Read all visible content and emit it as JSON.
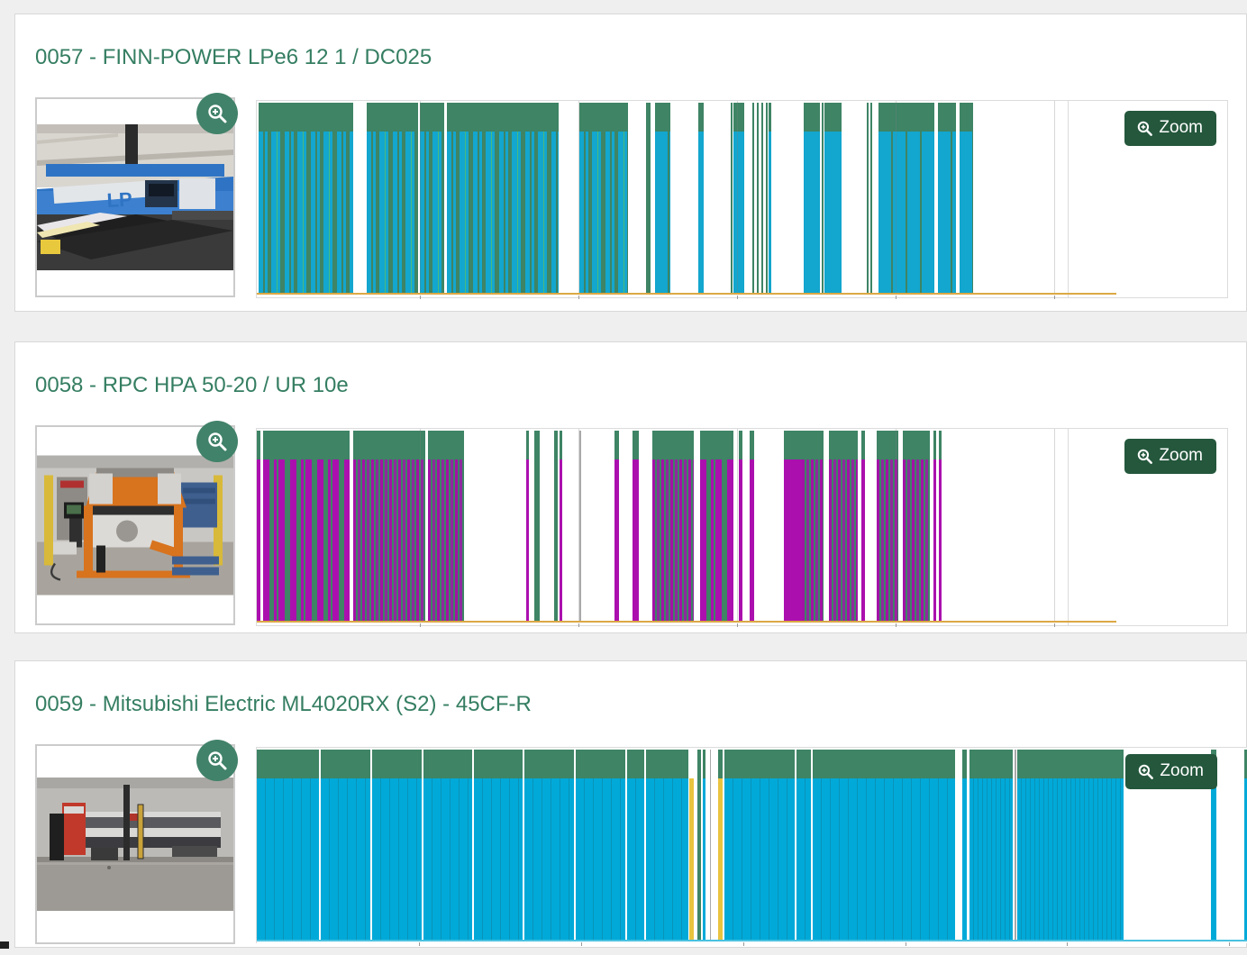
{
  "ui": {
    "zoom_button_label": "Zoom"
  },
  "palette": {
    "title_green": "#357E62",
    "band_green": "#3E8465",
    "cyan": "#13A6CE",
    "solid_cyan": "#00A9D8",
    "magenta": "#AB10AE",
    "yellow": "#E9C43F",
    "axis_orange": "#DCA845",
    "axis_cyan": "#4AC1E0",
    "button_green": "#24573C",
    "lens_green": "#41826A"
  },
  "panels": [
    {
      "title": "0057 - FINN-POWER LPe6 12 1 / DC025",
      "photo_desc": "blue FINN-POWER punching machine in workshop hall",
      "timeline": {
        "type": "timeline-barcode",
        "axis_width": 954,
        "axis_color": "#DCA845",
        "ticks": [
          181,
          357,
          533,
          709,
          885
        ],
        "gridlines": [
          181,
          357,
          533,
          709,
          885
        ],
        "segments": [
          [
            2,
            105,
            "act"
          ],
          [
            122,
            57,
            "act"
          ],
          [
            181,
            27,
            "act"
          ],
          [
            211,
            124,
            "act"
          ],
          [
            358,
            54,
            "act"
          ],
          [
            432,
            5,
            "grn"
          ],
          [
            442,
            17,
            "act3"
          ],
          [
            490,
            6,
            "sol"
          ],
          [
            526,
            2,
            "grn"
          ],
          [
            529,
            12,
            "sol"
          ],
          [
            550,
            2,
            "grn"
          ],
          [
            555,
            2,
            "grn"
          ],
          [
            560,
            2,
            "grn"
          ],
          [
            565,
            2,
            "grn"
          ],
          [
            568,
            3,
            "sol"
          ],
          [
            607,
            18,
            "sol"
          ],
          [
            627,
            2,
            "grn"
          ],
          [
            630,
            19,
            "sol"
          ],
          [
            677,
            2,
            "grn"
          ],
          [
            681,
            2,
            "grn"
          ],
          [
            690,
            62,
            "act3"
          ],
          [
            756,
            20,
            "act3"
          ],
          [
            780,
            15,
            "act3"
          ]
        ]
      }
    },
    {
      "title": "0058 - RPC HPA 50-20 / UR 10e",
      "photo_desc": "orange RPC press machine with robot and blue pallet",
      "timeline": {
        "type": "timeline-barcode",
        "axis_width": 954,
        "axis_color": "#DCA845",
        "ticks": [
          181,
          357,
          533,
          709,
          885
        ],
        "gridlines": [
          181,
          357,
          533,
          709,
          885
        ],
        "segments": [
          [
            0,
            4,
            "act"
          ],
          [
            7,
            96,
            "act"
          ],
          [
            107,
            80,
            "act2"
          ],
          [
            190,
            40,
            "act2"
          ],
          [
            299,
            3,
            "act"
          ],
          [
            308,
            6,
            "grn"
          ],
          [
            330,
            4,
            "grn"
          ],
          [
            336,
            3,
            "act"
          ],
          [
            358,
            2,
            "ln"
          ],
          [
            397,
            5,
            "act"
          ],
          [
            417,
            7,
            "act"
          ],
          [
            439,
            46,
            "act2"
          ],
          [
            492,
            37,
            "act"
          ],
          [
            535,
            4,
            "act"
          ],
          [
            547,
            5,
            "act"
          ],
          [
            585,
            20,
            "solm"
          ],
          [
            605,
            24,
            "act2"
          ],
          [
            635,
            32,
            "act2"
          ],
          [
            671,
            4,
            "act"
          ],
          [
            688,
            24,
            "act2"
          ],
          [
            717,
            30,
            "act2"
          ],
          [
            751,
            3,
            "act"
          ],
          [
            757,
            3,
            "act"
          ]
        ]
      }
    },
    {
      "title": "0059 - Mitsubishi Electric ML4020RX (S2) - 45CF-R",
      "photo_desc": "red and white Mitsubishi laser cutting machine in warehouse",
      "timeline": {
        "type": "timeline-barcode",
        "axis_width": 1101,
        "axis_color": "#4AC1E0",
        "ticks": [
          180,
          360,
          540,
          720,
          899,
          1079
        ],
        "gridlines": [],
        "segments": [
          [
            0,
            69,
            "sol"
          ],
          [
            71,
            55,
            "sol"
          ],
          [
            128,
            55,
            "sol"
          ],
          [
            185,
            54,
            "sol"
          ],
          [
            241,
            54,
            "sol"
          ],
          [
            297,
            55,
            "sol"
          ],
          [
            354,
            55,
            "sol"
          ],
          [
            411,
            19,
            "sol"
          ],
          [
            432,
            47,
            "sol"
          ],
          [
            480,
            5,
            "yel"
          ],
          [
            489,
            4,
            "grn"
          ],
          [
            495,
            3,
            "sol"
          ],
          [
            503,
            1,
            "ln"
          ],
          [
            512,
            5,
            "yelb"
          ],
          [
            519,
            78,
            "sol"
          ],
          [
            599,
            16,
            "sol"
          ],
          [
            617,
            158,
            "sol"
          ],
          [
            783,
            5,
            "sol"
          ],
          [
            791,
            48,
            "sol2"
          ],
          [
            841,
            2,
            "ln"
          ],
          [
            844,
            118,
            "sol2"
          ],
          [
            1059,
            6,
            "sol"
          ],
          [
            1096,
            5,
            "sol"
          ]
        ]
      }
    }
  ]
}
